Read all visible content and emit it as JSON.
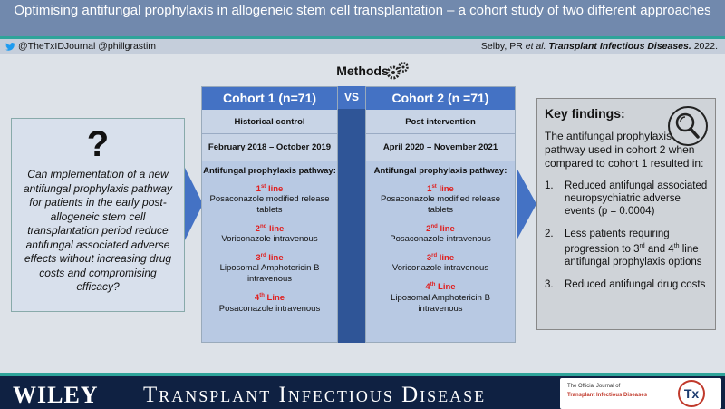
{
  "title": "Optimising antifungal prophylaxis in allogeneic stem cell transplantation – a cohort study of two different approaches",
  "social": "@TheTxIDJournal  @phillgrastim",
  "citation": {
    "authors": "Selby, PR ",
    "etal": "et al.",
    "journal": "Transplant Infectious Diseases.",
    "year": "2022."
  },
  "methods_label": "Methods",
  "vs_label": "VS",
  "question_mark": "?",
  "question": "Can implementation of a new antifungal prophylaxis pathway for patients in the early post-allogeneic stem cell transplantation period reduce antifungal associated adverse effects without increasing drug costs and compromising efficacy?",
  "cohort1": {
    "header": "Cohort 1 (n=71)",
    "group": "Historical control",
    "dates": "February 2018 – October 2019",
    "pathway_title": "Antifungal prophylaxis pathway:",
    "lines": [
      {
        "num": "1",
        "sup": "st",
        "suffix": " line",
        "desc": "Posaconazole modified release tablets"
      },
      {
        "num": "2",
        "sup": "nd",
        "suffix": " line",
        "desc": "Voriconazole intravenous"
      },
      {
        "num": "3",
        "sup": "rd",
        "suffix": "  line",
        "desc": "Liposomal Amphotericin B intravenous"
      },
      {
        "num": "4",
        "sup": "th",
        "suffix": " Line",
        "desc": "Posaconazole intravenous"
      }
    ]
  },
  "cohort2": {
    "header": "Cohort 2 (n =71)",
    "group": "Post intervention",
    "dates": "April 2020 – November 2021",
    "pathway_title": "Antifungal prophylaxis pathway:",
    "lines": [
      {
        "num": "1",
        "sup": "st",
        "suffix": " line",
        "desc": "Posaconazole modified release tablets"
      },
      {
        "num": "2",
        "sup": "nd",
        "suffix": " line",
        "desc": "Posaconazole intravenous"
      },
      {
        "num": "3",
        "sup": "rd",
        "suffix": " line",
        "desc": "Voriconazole intravenous"
      },
      {
        "num": "4",
        "sup": "th",
        "suffix": " Line",
        "desc": "Liposomal Amphotericin B intravenous"
      }
    ]
  },
  "key_findings": {
    "title": "Key findings:",
    "intro": "The antifungal prophylaxis pathway used in cohort 2 when compared to cohort 1 resulted in:",
    "items": [
      {
        "n": "1.",
        "text": "Reduced antifungal associated neuropsychiatric adverse events (p = 0.0004)"
      },
      {
        "n": "2.",
        "pre": "Less patients requiring progression to 3",
        "sup1": "rd",
        "mid": " and 4",
        "sup2": "th",
        "post": " line antifungal prophylaxis options"
      },
      {
        "n": "3.",
        "text": "Reduced antifungal drug costs"
      }
    ]
  },
  "footer": {
    "publisher": "WILEY",
    "journal": "Transplant Infectious Disease",
    "official_journal": "The Official Journal of",
    "society": "Transplant Infectious Diseases",
    "tx_logo": "Tx"
  },
  "colors": {
    "header_blue": "#4472c4",
    "dark_blue": "#2f5597",
    "accent_red": "#e02020",
    "teal": "#2fa49a",
    "navy": "#0f2142"
  },
  "icons": [
    "twitter-icon",
    "gears-icon",
    "magnifier-icon",
    "right-arrow-icon"
  ]
}
